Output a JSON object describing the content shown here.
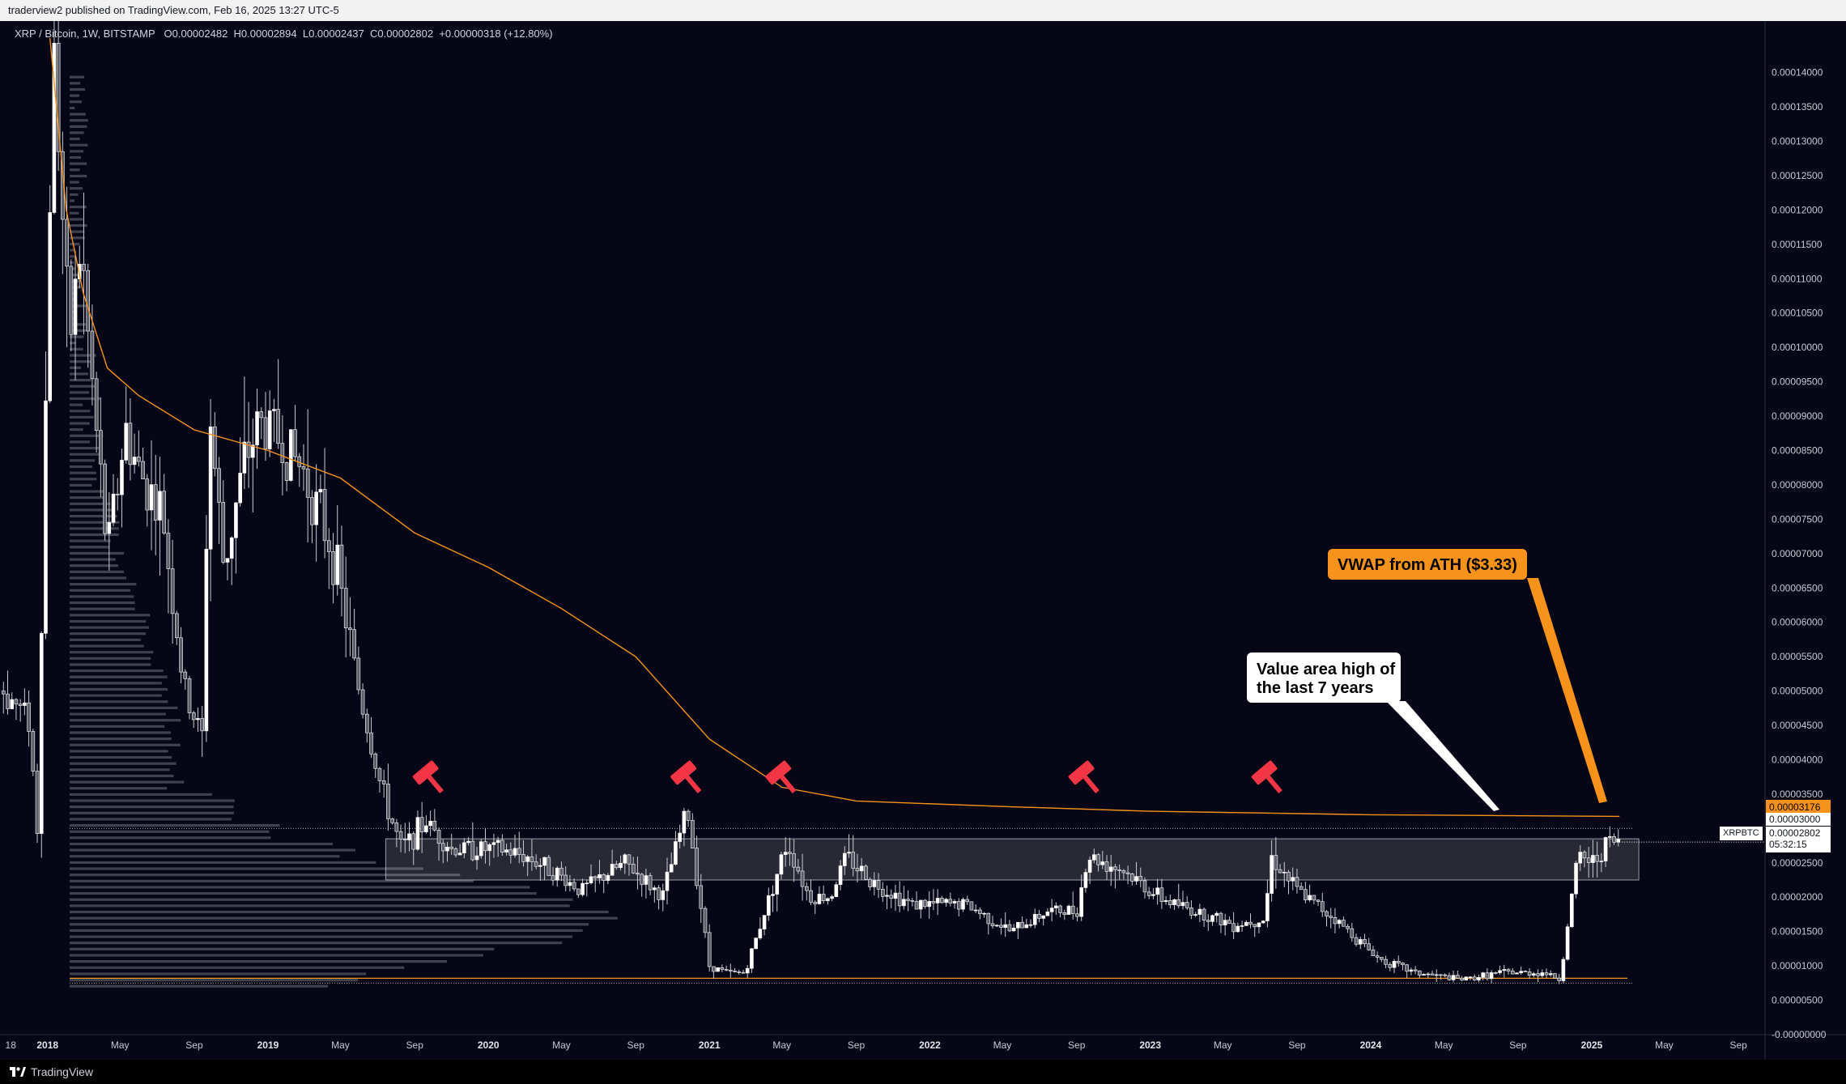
{
  "header": {
    "published_by": "traderview2 published on TradingView.com, Feb 16, 2025 13:27 UTC-5"
  },
  "legend": {
    "symbol": "XRP / Bitcoin",
    "interval": "1W",
    "exchange": "BITSTAMP",
    "open": "O0.00002482",
    "high": "H0.00002894",
    "low": "L0.00002437",
    "close": "C0.00002802",
    "change": "+0.00000318 (+12.80%)"
  },
  "price_tags": {
    "vwap": "0.00003176",
    "resistance": "0.00003000",
    "last": "0.00002802",
    "countdown": "05:32:15",
    "symbol": "XRPBTC"
  },
  "annotations": {
    "vwap_label": "VWAP from ATH ($3.33)",
    "value_area_line1": "Value area high of",
    "value_area_line2": "the last 7 years"
  },
  "footer": {
    "brand": "TradingView"
  },
  "colors": {
    "background": "#060616",
    "vwap": "#f7931a",
    "hammer": "#f23645",
    "candle": "#ffffff",
    "zone": "#ffffff"
  },
  "chart_data": {
    "type": "candlestick",
    "symbol": "XRPBTC",
    "exchange": "BITSTAMP",
    "interval": "1W",
    "y_axis": {
      "min": 0,
      "max": 0.0001475,
      "ticks": [
        "0.00014000",
        "0.00013500",
        "0.00013000",
        "0.00012500",
        "0.00012000",
        "0.00011500",
        "0.00011000",
        "0.00010500",
        "0.00010000",
        "0.00009500",
        "0.00009000",
        "0.00008500",
        "0.00008000",
        "0.00007500",
        "0.00007000",
        "0.00006500",
        "0.00006000",
        "0.00005500",
        "0.00005000",
        "0.00004500",
        "0.00004000",
        "0.00003500",
        "0.00002500",
        "0.00002000",
        "0.00001500",
        "0.00001000",
        "0.00000500",
        "-0.00000000"
      ],
      "tick_values": [
        0.00014,
        0.000135,
        0.00013,
        0.000125,
        0.00012,
        0.000115,
        0.00011,
        0.000105,
        0.0001,
        9.5e-05,
        9e-05,
        8.5e-05,
        8e-05,
        7.5e-05,
        7e-05,
        6.5e-05,
        6e-05,
        5.5e-05,
        5e-05,
        4.5e-05,
        4e-05,
        3.5e-05,
        2.5e-05,
        2e-05,
        1.5e-05,
        1e-05,
        5e-06,
        0
      ]
    },
    "x_axis": {
      "start": "2017-10-25",
      "end": "2025-10-15",
      "ticks": [
        {
          "label": "18",
          "date": "2017-11-01",
          "year": false
        },
        {
          "label": "2018",
          "date": "2018-01-01",
          "year": true
        },
        {
          "label": "May",
          "date": "2018-05-01",
          "year": false
        },
        {
          "label": "Sep",
          "date": "2018-09-01",
          "year": false
        },
        {
          "label": "2019",
          "date": "2019-01-01",
          "year": true
        },
        {
          "label": "May",
          "date": "2019-05-01",
          "year": false
        },
        {
          "label": "Sep",
          "date": "2019-09-01",
          "year": false
        },
        {
          "label": "2020",
          "date": "2020-01-01",
          "year": true
        },
        {
          "label": "May",
          "date": "2020-05-01",
          "year": false
        },
        {
          "label": "Sep",
          "date": "2020-09-01",
          "year": false
        },
        {
          "label": "2021",
          "date": "2021-01-01",
          "year": true
        },
        {
          "label": "May",
          "date": "2021-05-01",
          "year": false
        },
        {
          "label": "Sep",
          "date": "2021-09-01",
          "year": false
        },
        {
          "label": "2022",
          "date": "2022-01-01",
          "year": true
        },
        {
          "label": "May",
          "date": "2022-05-01",
          "year": false
        },
        {
          "label": "Sep",
          "date": "2022-09-01",
          "year": false
        },
        {
          "label": "2023",
          "date": "2023-01-01",
          "year": true
        },
        {
          "label": "May",
          "date": "2023-05-01",
          "year": false
        },
        {
          "label": "Sep",
          "date": "2023-09-01",
          "year": false
        },
        {
          "label": "2024",
          "date": "2024-01-01",
          "year": true
        },
        {
          "label": "May",
          "date": "2024-05-01",
          "year": false
        },
        {
          "label": "Sep",
          "date": "2024-09-01",
          "year": false
        },
        {
          "label": "2025",
          "date": "2025-01-01",
          "year": true
        },
        {
          "label": "May",
          "date": "2025-05-01",
          "year": false
        },
        {
          "label": "Sep",
          "date": "2025-09-01",
          "year": false
        }
      ]
    },
    "price_path": [
      {
        "date": "2017-10-20",
        "price": 5e-05
      },
      {
        "date": "2017-11-10",
        "price": 4.8e-05
      },
      {
        "date": "2017-12-01",
        "price": 4.6e-05
      },
      {
        "date": "2017-12-15",
        "price": 3e-05
      },
      {
        "date": "2018-01-01",
        "price": 0.000105
      },
      {
        "date": "2018-01-10",
        "price": 0.000145
      },
      {
        "date": "2018-01-20",
        "price": 0.00013
      },
      {
        "date": "2018-02-05",
        "price": 0.0001
      },
      {
        "date": "2018-02-25",
        "price": 0.000115
      },
      {
        "date": "2018-03-15",
        "price": 9.5e-05
      },
      {
        "date": "2018-04-10",
        "price": 7e-05
      },
      {
        "date": "2018-05-10",
        "price": 8.8e-05
      },
      {
        "date": "2018-06-01",
        "price": 8.2e-05
      },
      {
        "date": "2018-07-10",
        "price": 7.6e-05
      },
      {
        "date": "2018-08-15",
        "price": 5e-05
      },
      {
        "date": "2018-09-15",
        "price": 4.3e-05
      },
      {
        "date": "2018-09-25",
        "price": 9.2e-05
      },
      {
        "date": "2018-10-20",
        "price": 6.8e-05
      },
      {
        "date": "2018-11-20",
        "price": 8.2e-05
      },
      {
        "date": "2018-12-15",
        "price": 8.9e-05
      },
      {
        "date": "2019-01-10",
        "price": 8.8e-05
      },
      {
        "date": "2019-03-01",
        "price": 8.2e-05
      },
      {
        "date": "2019-04-20",
        "price": 7e-05
      },
      {
        "date": "2019-06-01",
        "price": 5e-05
      },
      {
        "date": "2019-07-10",
        "price": 3.5e-05
      },
      {
        "date": "2019-08-10",
        "price": 2.7e-05
      },
      {
        "date": "2019-09-20",
        "price": 3.1e-05
      },
      {
        "date": "2019-11-01",
        "price": 2.7e-05
      },
      {
        "date": "2020-01-15",
        "price": 2.7e-05
      },
      {
        "date": "2020-03-01",
        "price": 2.6e-05
      },
      {
        "date": "2020-04-15",
        "price": 2.4e-05
      },
      {
        "date": "2020-06-01",
        "price": 2.1e-05
      },
      {
        "date": "2020-08-15",
        "price": 2.5e-05
      },
      {
        "date": "2020-10-15",
        "price": 2e-05
      },
      {
        "date": "2020-11-25",
        "price": 3.3e-05
      },
      {
        "date": "2021-01-01",
        "price": 1e-05
      },
      {
        "date": "2021-02-01",
        "price": 9e-06
      },
      {
        "date": "2021-03-01",
        "price": 9e-06
      },
      {
        "date": "2021-04-10",
        "price": 2e-05
      },
      {
        "date": "2021-05-10",
        "price": 2.8e-05
      },
      {
        "date": "2021-06-15",
        "price": 2e-05
      },
      {
        "date": "2021-07-20",
        "price": 2e-05
      },
      {
        "date": "2021-08-15",
        "price": 2.6e-05
      },
      {
        "date": "2021-10-01",
        "price": 2.2e-05
      },
      {
        "date": "2021-12-01",
        "price": 1.9e-05
      },
      {
        "date": "2022-03-01",
        "price": 1.9e-05
      },
      {
        "date": "2022-05-15",
        "price": 1.5e-05
      },
      {
        "date": "2022-07-15",
        "price": 1.8e-05
      },
      {
        "date": "2022-09-01",
        "price": 1.8e-05
      },
      {
        "date": "2022-09-20",
        "price": 2.6e-05
      },
      {
        "date": "2022-11-15",
        "price": 2.4e-05
      },
      {
        "date": "2023-01-15",
        "price": 2e-05
      },
      {
        "date": "2023-03-15",
        "price": 1.8e-05
      },
      {
        "date": "2023-05-20",
        "price": 1.6e-05
      },
      {
        "date": "2023-07-10",
        "price": 1.7e-05
      },
      {
        "date": "2023-07-20",
        "price": 2.6e-05
      },
      {
        "date": "2023-09-01",
        "price": 2.1e-05
      },
      {
        "date": "2023-11-01",
        "price": 1.7e-05
      },
      {
        "date": "2024-01-15",
        "price": 1.1e-05
      },
      {
        "date": "2024-03-15",
        "price": 9e-06
      },
      {
        "date": "2024-06-01",
        "price": 8e-06
      },
      {
        "date": "2024-08-01",
        "price": 9e-06
      },
      {
        "date": "2024-10-15",
        "price": 9e-06
      },
      {
        "date": "2024-11-10",
        "price": 8e-06
      },
      {
        "date": "2024-11-25",
        "price": 1.8e-05
      },
      {
        "date": "2024-12-10",
        "price": 2.6e-05
      },
      {
        "date": "2025-01-05",
        "price": 2.5e-05
      },
      {
        "date": "2025-01-25",
        "price": 2.8e-05
      },
      {
        "date": "2025-02-16",
        "price": 2.8e-05
      }
    ],
    "vwap_path": [
      {
        "date": "2018-01-05",
        "price": 0.000145
      },
      {
        "date": "2018-02-01",
        "price": 0.00012
      },
      {
        "date": "2018-03-01",
        "price": 0.000108
      },
      {
        "date": "2018-04-10",
        "price": 9.7e-05
      },
      {
        "date": "2018-06-01",
        "price": 9.3e-05
      },
      {
        "date": "2018-09-01",
        "price": 8.8e-05
      },
      {
        "date": "2019-01-01",
        "price": 8.5e-05
      },
      {
        "date": "2019-05-01",
        "price": 8.1e-05
      },
      {
        "date": "2019-09-01",
        "price": 7.3e-05
      },
      {
        "date": "2020-01-01",
        "price": 6.8e-05
      },
      {
        "date": "2020-05-01",
        "price": 6.2e-05
      },
      {
        "date": "2020-09-01",
        "price": 5.5e-05
      },
      {
        "date": "2021-01-01",
        "price": 4.3e-05
      },
      {
        "date": "2021-05-01",
        "price": 3.6e-05
      },
      {
        "date": "2021-09-01",
        "price": 3.4e-05
      },
      {
        "date": "2022-05-01",
        "price": 3.32e-05
      },
      {
        "date": "2023-01-01",
        "price": 3.25e-05
      },
      {
        "date": "2024-01-01",
        "price": 3.2e-05
      },
      {
        "date": "2025-02-16",
        "price": 3.176e-05
      }
    ],
    "value_area_zone": {
      "low": 2.25e-05,
      "high": 2.85e-05,
      "from": "2019-07-15",
      "to": "2025-03-20"
    },
    "dotted_levels": [
      3e-05,
      7.5e-06
    ],
    "low_line": 8.2e-06,
    "resistance_rejections": [
      "2019-09-25",
      "2020-11-25",
      "2021-05-01",
      "2022-09-15",
      "2023-07-15"
    ],
    "volume_profile_note": "horizontal volume profile on left side"
  }
}
